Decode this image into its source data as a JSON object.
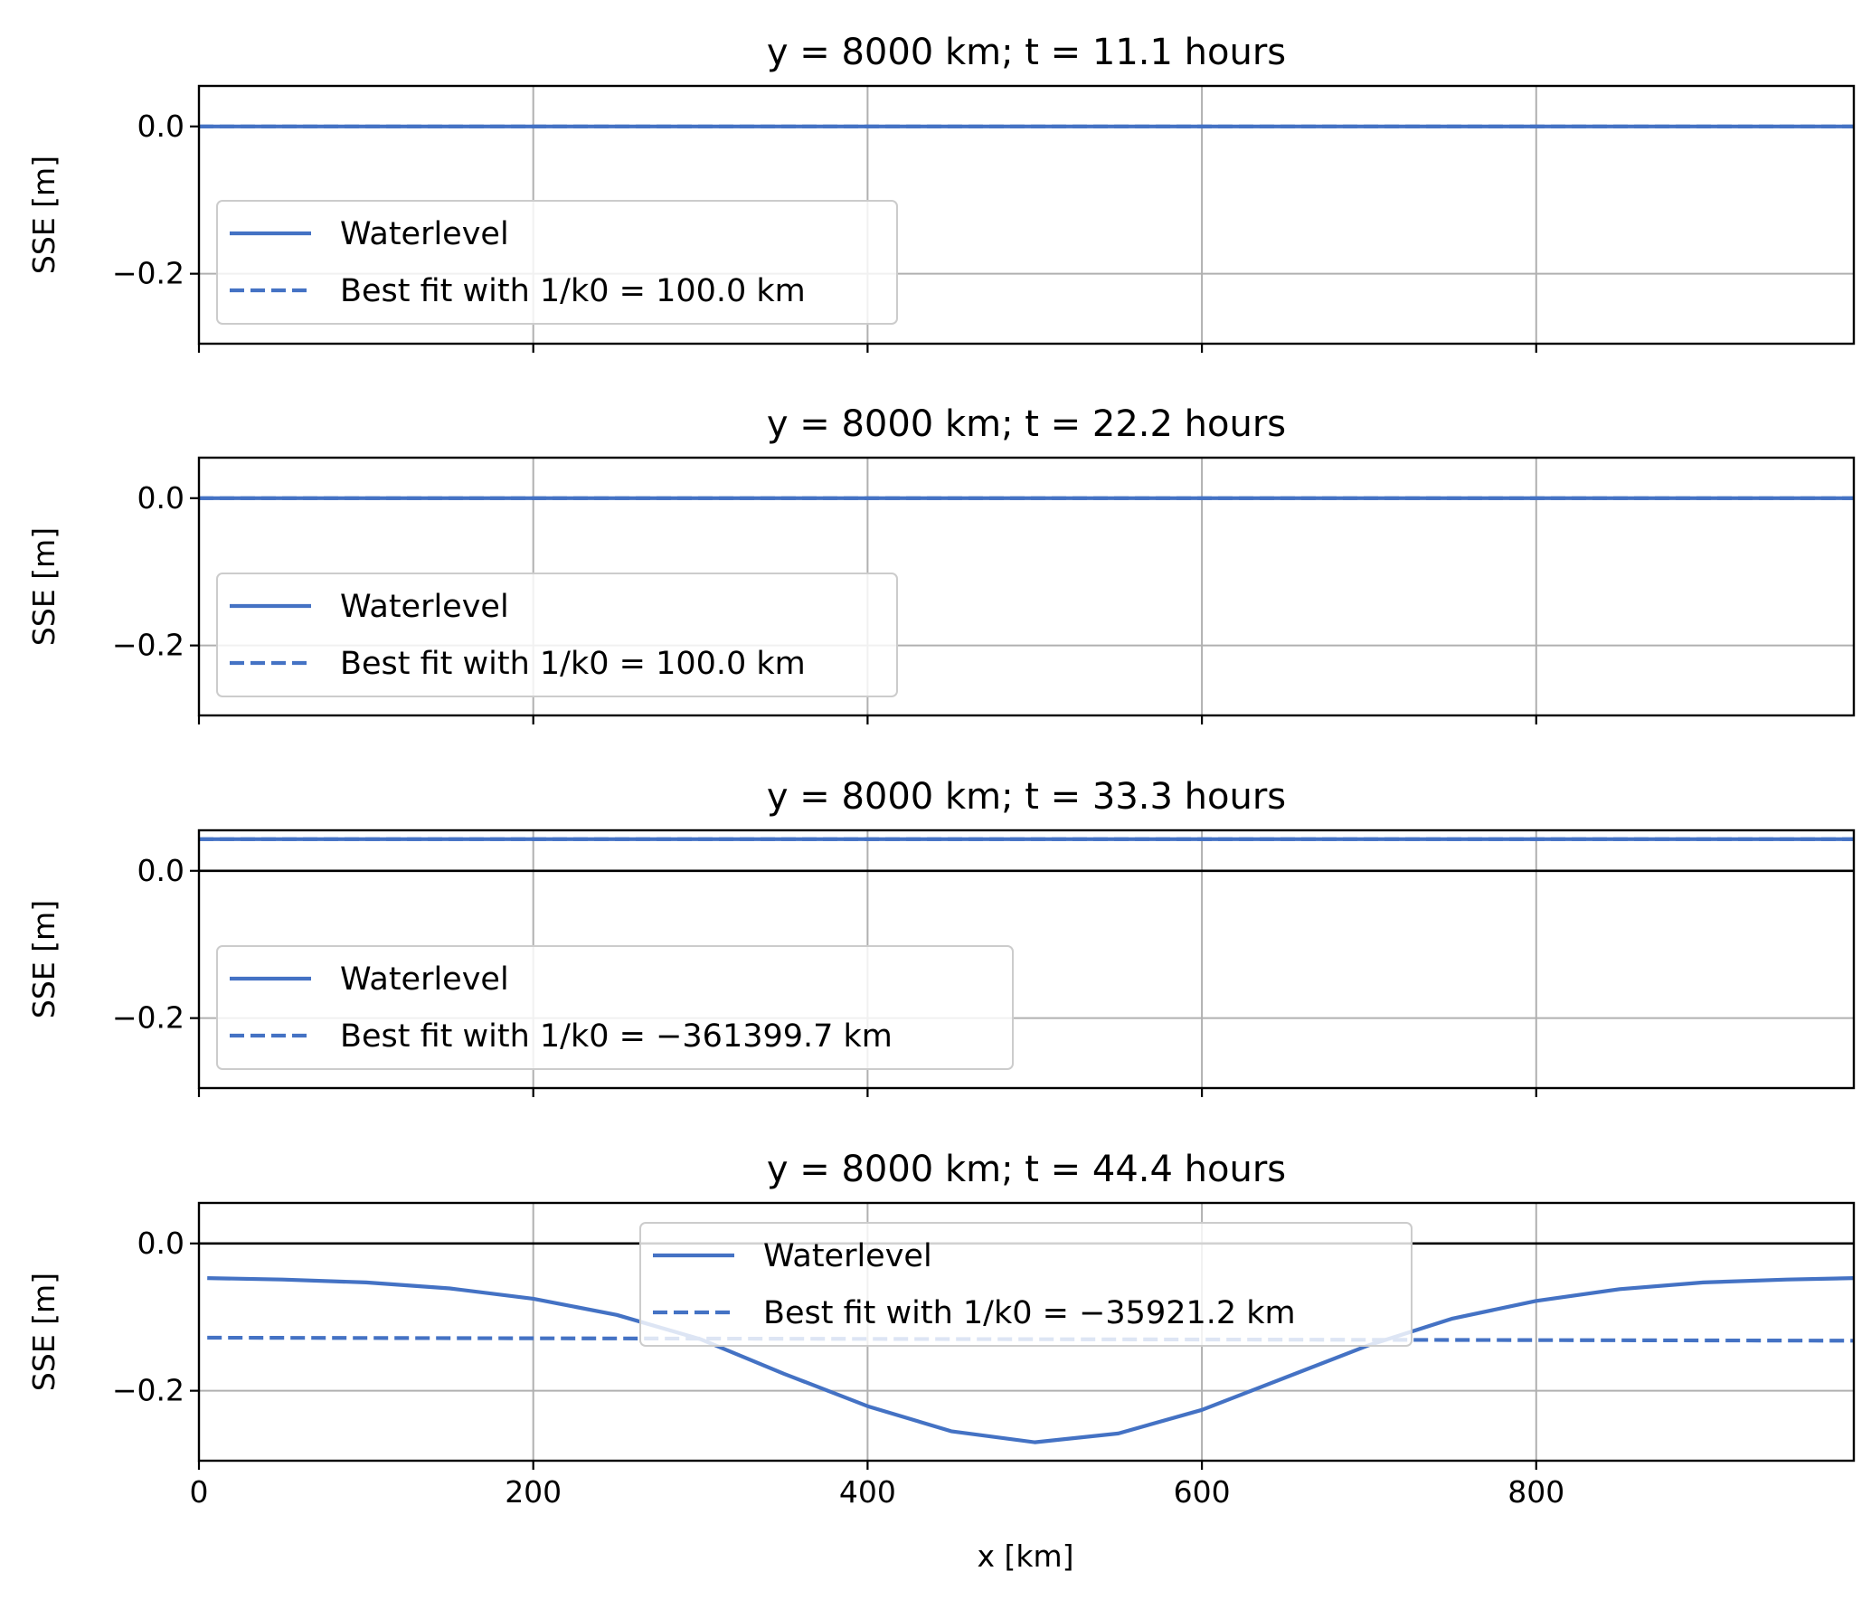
{
  "figure": {
    "xlabel": "x [km]",
    "ylabel": "SSE [m]",
    "xticks": [
      0,
      200,
      400,
      600,
      800
    ],
    "yticks": [
      0.0,
      -0.2
    ],
    "ytick_labels": [
      "0.0",
      "−0.2"
    ],
    "colors": {
      "series": "#4472c4",
      "zero_line": "#000000",
      "grid": "#b0b0b0"
    }
  },
  "chart_data": [
    {
      "type": "line",
      "title": "y = 8000 km; t = 11.1 hours",
      "xlabel": "",
      "ylabel": "SSE [m]",
      "xlim": [
        0,
        990
      ],
      "ylim": [
        -0.295,
        0.055
      ],
      "grid": true,
      "legend_position": "lower-left",
      "series": [
        {
          "name": "Waterlevel",
          "style": "solid",
          "x": [
            0,
            990
          ],
          "y": [
            0.0,
            0.0
          ]
        },
        {
          "name": "Best fit with 1/k0 = 100.0 km",
          "style": "dashed",
          "x": [
            0,
            990
          ],
          "y": [
            0.0,
            0.0
          ]
        }
      ]
    },
    {
      "type": "line",
      "title": "y = 8000 km; t = 22.2 hours",
      "xlabel": "",
      "ylabel": "SSE [m]",
      "xlim": [
        0,
        990
      ],
      "ylim": [
        -0.295,
        0.055
      ],
      "grid": true,
      "legend_position": "lower-left",
      "series": [
        {
          "name": "Waterlevel",
          "style": "solid",
          "x": [
            0,
            990
          ],
          "y": [
            0.0,
            0.0
          ]
        },
        {
          "name": "Best fit with 1/k0 = 100.0 km",
          "style": "dashed",
          "x": [
            0,
            990
          ],
          "y": [
            0.0,
            0.0
          ]
        }
      ]
    },
    {
      "type": "line",
      "title": "y = 8000 km; t = 33.3 hours",
      "xlabel": "",
      "ylabel": "SSE [m]",
      "xlim": [
        0,
        990
      ],
      "ylim": [
        -0.295,
        0.055
      ],
      "grid": true,
      "legend_position": "lower-left",
      "series": [
        {
          "name": "Waterlevel",
          "style": "solid",
          "x": [
            0,
            990
          ],
          "y": [
            0.043,
            0.043
          ]
        },
        {
          "name": "Best fit with 1/k0 = −361399.7 km",
          "style": "dashed",
          "x": [
            0,
            990
          ],
          "y": [
            0.043,
            0.043
          ]
        }
      ]
    },
    {
      "type": "line",
      "title": "y = 8000 km; t = 44.4 hours",
      "xlabel": "x [km]",
      "ylabel": "SSE [m]",
      "xlim": [
        0,
        990
      ],
      "ylim": [
        -0.295,
        0.055
      ],
      "grid": true,
      "legend_position": "upper-center",
      "series": [
        {
          "name": "Waterlevel",
          "style": "solid",
          "x": [
            5,
            50,
            100,
            150,
            200,
            250,
            300,
            350,
            400,
            450,
            500,
            550,
            600,
            650,
            700,
            750,
            800,
            850,
            900,
            950,
            990
          ],
          "y": [
            -0.047,
            -0.049,
            -0.053,
            -0.061,
            -0.075,
            -0.097,
            -0.13,
            -0.177,
            -0.221,
            -0.255,
            -0.27,
            -0.258,
            -0.226,
            -0.182,
            -0.138,
            -0.102,
            -0.078,
            -0.062,
            -0.053,
            -0.049,
            -0.047
          ]
        },
        {
          "name": "Best fit with 1/k0 = −35921.2 km",
          "style": "dashed",
          "x": [
            5,
            990
          ],
          "y": [
            -0.128,
            -0.132
          ]
        }
      ]
    }
  ]
}
